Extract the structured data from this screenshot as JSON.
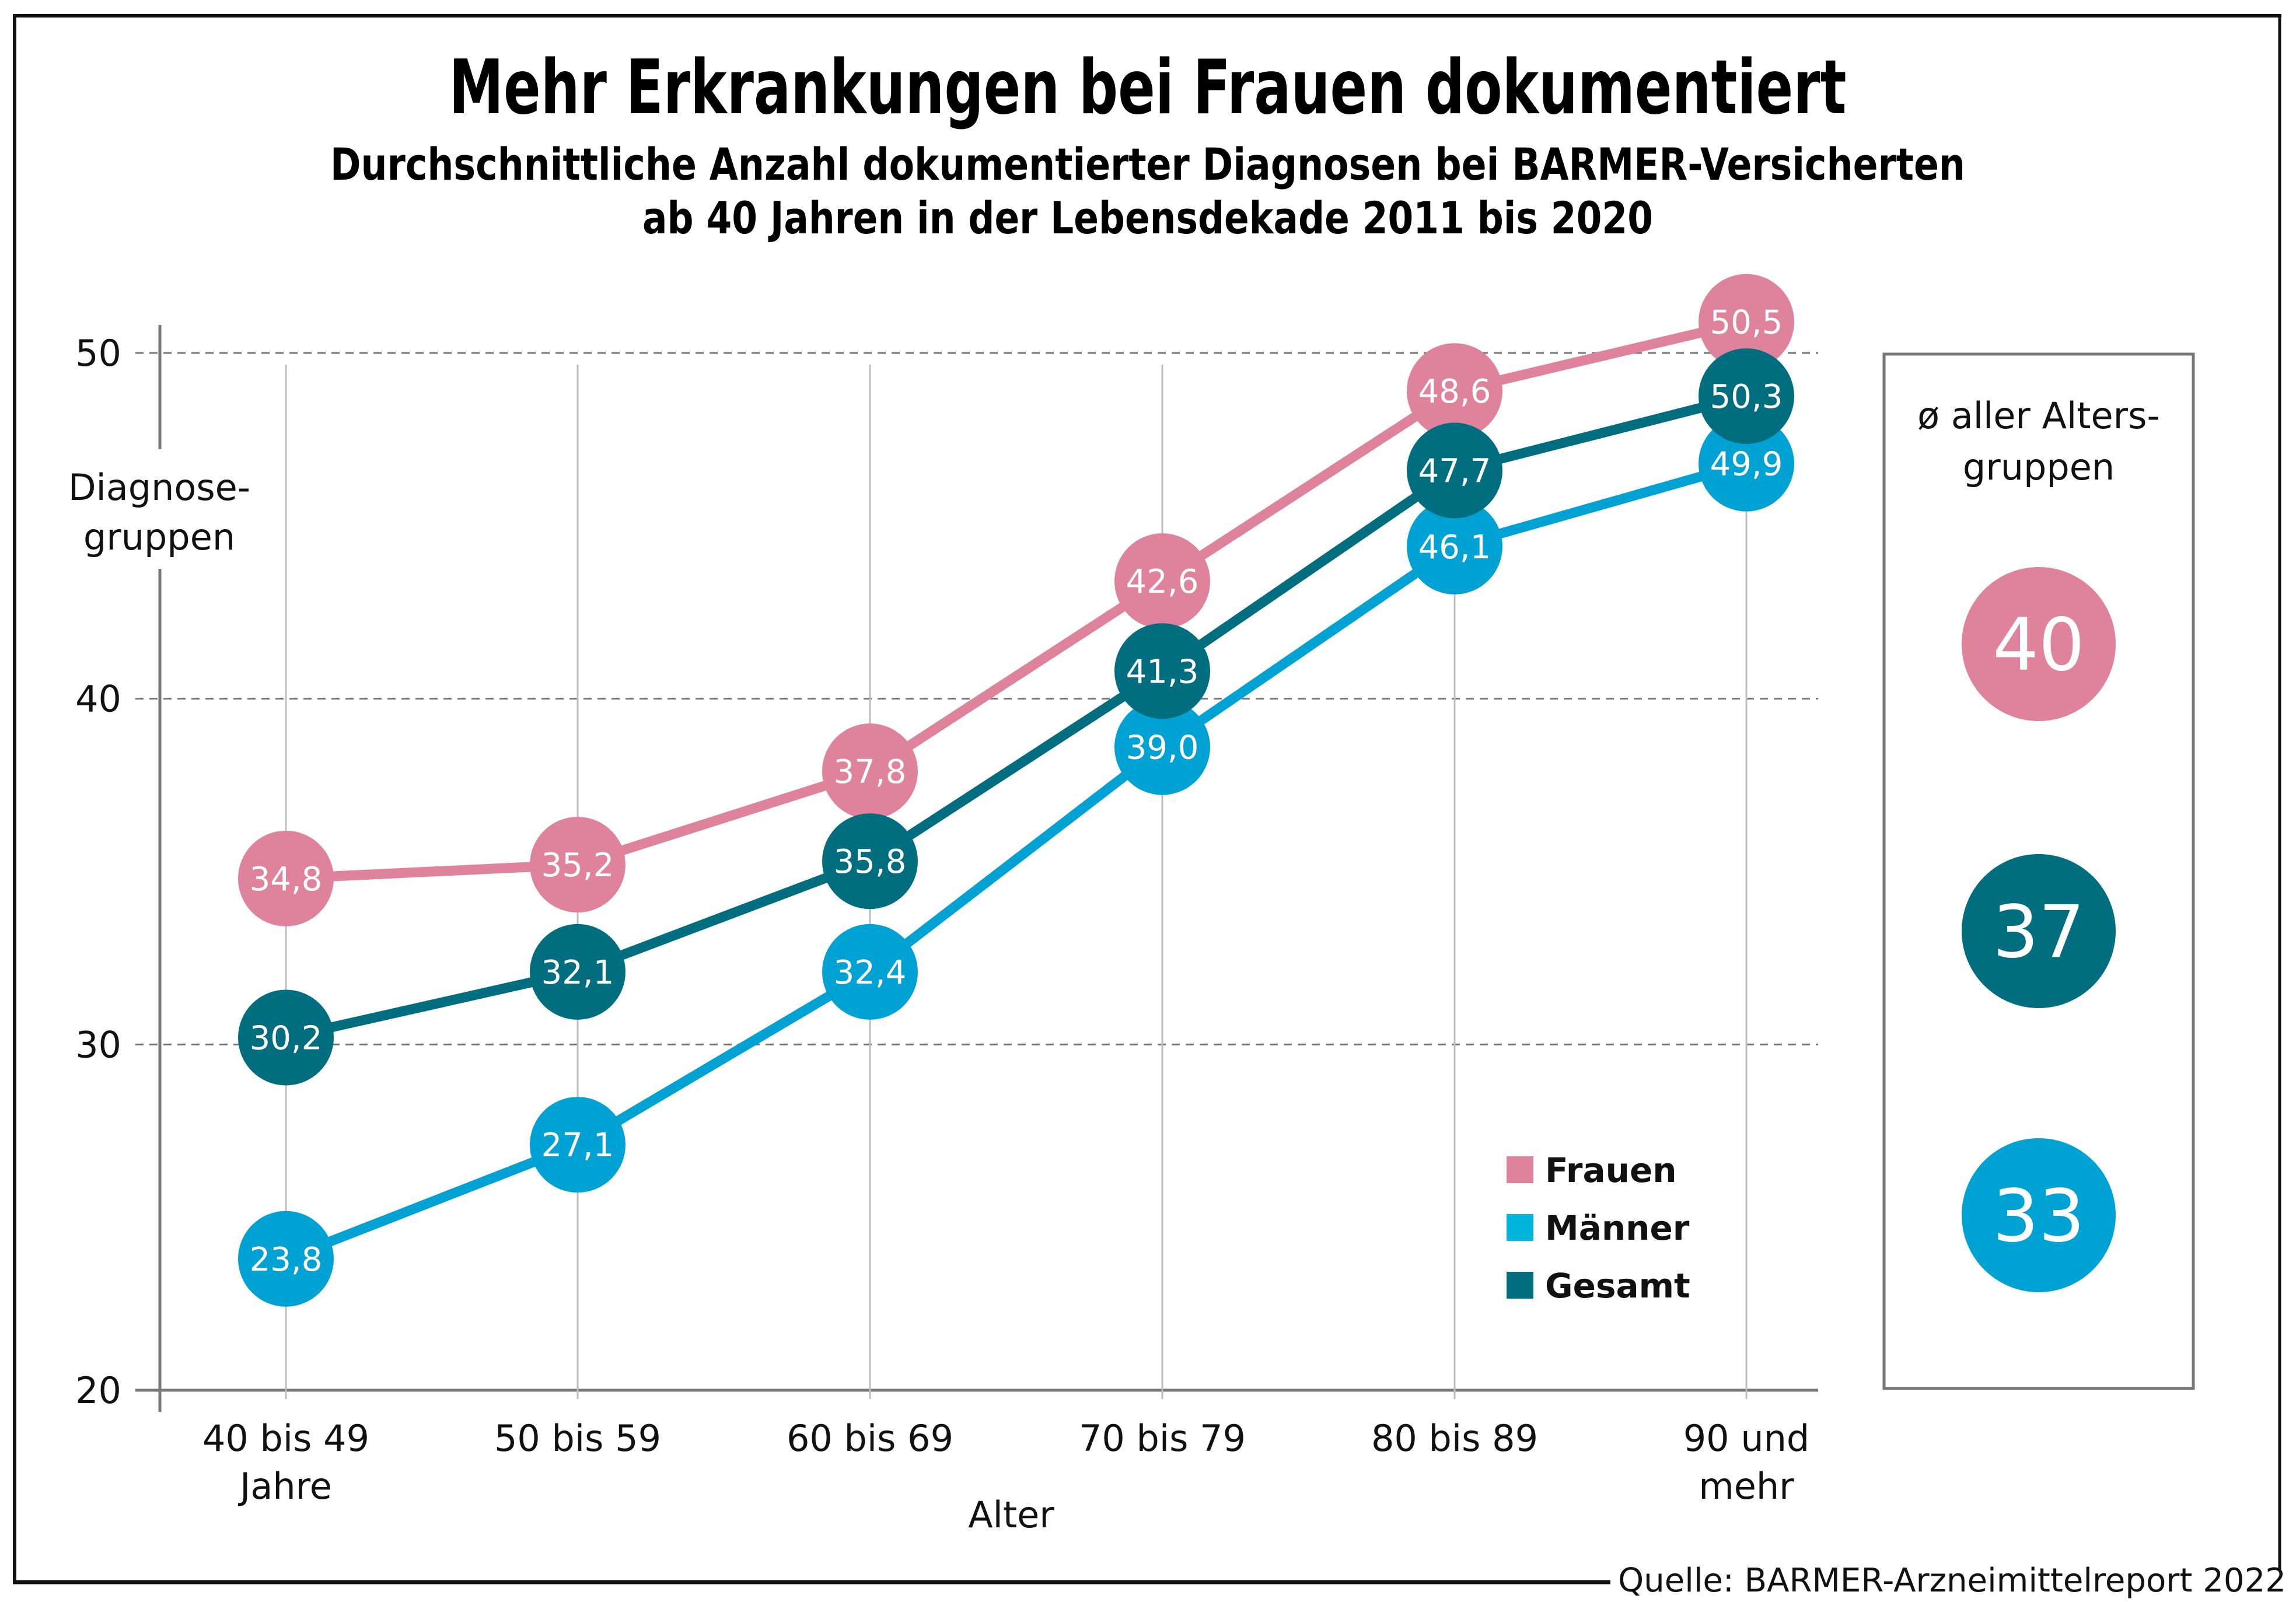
{
  "chart_data": {
    "type": "line",
    "title": "Mehr Erkrankungen bei Frauen dokumentiert",
    "subtitle_lines": [
      "Durchschnittliche Anzahl dokumentierter Diagnosen bei BARMER-Versicherten",
      "ab 40 Jahren in der Lebensdekade 2011 bis 2020"
    ],
    "xlabel": "Alter",
    "ylabel_lines": [
      "Diagnose-",
      "gruppen"
    ],
    "categories": [
      [
        "40 bis 49",
        "Jahre"
      ],
      [
        "50 bis 59"
      ],
      [
        "60 bis 69"
      ],
      [
        "70 bis 79"
      ],
      [
        "80 bis 89"
      ],
      [
        "90 und",
        "mehr"
      ]
    ],
    "ylim": [
      20,
      50
    ],
    "yticks": [
      20,
      30,
      40,
      50
    ],
    "grid": true,
    "decimal_separator": ",",
    "series": [
      {
        "name": "Frauen",
        "color": "#DF829C",
        "legend_color": "#DF829C",
        "values": [
          34.8,
          35.2,
          37.8,
          42.6,
          48.6,
          50.5
        ]
      },
      {
        "name": "Gesamt",
        "color": "#006E7F",
        "legend_color": "#006E7F",
        "values": [
          30.2,
          32.1,
          35.8,
          41.3,
          47.7,
          50.3
        ]
      },
      {
        "name": "Männer",
        "color": "#00A2D3",
        "legend_color": "#00B4DC",
        "values": [
          23.8,
          27.1,
          32.4,
          39.0,
          46.1,
          49.9
        ]
      }
    ],
    "legend": {
      "placement": "bottom-right",
      "order": [
        "Frauen",
        "Männer",
        "Gesamt"
      ]
    },
    "averages": {
      "title_lines": [
        "ø aller Alters-",
        "gruppen"
      ],
      "items": [
        {
          "series": "Frauen",
          "value": "40",
          "color": "#DF829C"
        },
        {
          "series": "Gesamt",
          "value": "37",
          "color": "#006E7F"
        },
        {
          "series": "Männer",
          "value": "33",
          "color": "#00A2D3"
        }
      ]
    },
    "source": "Quelle: BARMER-Arzneimittelreport 2022"
  }
}
